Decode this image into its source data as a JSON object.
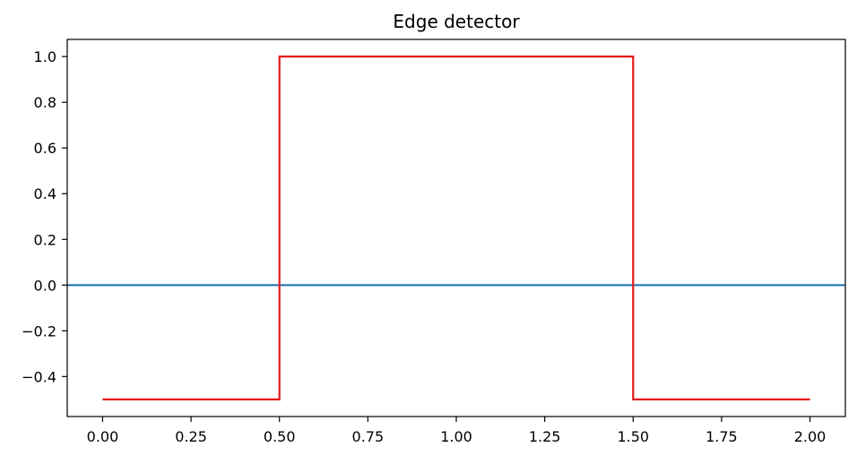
{
  "chart_data": {
    "type": "line",
    "title": "Edge detector",
    "xlabel": "",
    "ylabel": "",
    "xlim": [
      -0.1,
      2.1
    ],
    "ylim": [
      -0.575,
      1.075
    ],
    "grid": false,
    "x_ticks": [
      0.0,
      0.25,
      0.5,
      0.75,
      1.0,
      1.25,
      1.5,
      1.75,
      2.0
    ],
    "x_tick_labels": [
      "0.00",
      "0.25",
      "0.50",
      "0.75",
      "1.00",
      "1.25",
      "1.50",
      "1.75",
      "2.00"
    ],
    "y_ticks": [
      -0.4,
      -0.2,
      0.0,
      0.2,
      0.4,
      0.6,
      0.8,
      1.0
    ],
    "y_tick_labels": [
      "−0.4",
      "−0.2",
      "0.0",
      "0.2",
      "0.4",
      "0.6",
      "0.8",
      "1.0"
    ],
    "series": [
      {
        "color": "#e41a1c",
        "x": [
          0.0,
          0.5,
          0.5,
          1.5,
          1.5,
          2.0
        ],
        "y": [
          -0.5,
          -0.5,
          1.0,
          1.0,
          -0.5,
          -0.5
        ]
      }
    ],
    "hlines": [
      {
        "y": 0.0,
        "color": "#1f77b4"
      }
    ]
  }
}
